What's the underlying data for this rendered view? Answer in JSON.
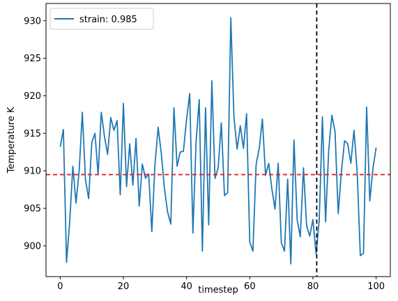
{
  "chart_data": {
    "type": "line",
    "title": "",
    "xlabel": "timestep",
    "ylabel": "Temperature K",
    "xlim": [
      -4.5,
      104.5
    ],
    "ylim": [
      895.9,
      932.3
    ],
    "xticks": [
      "0",
      "20",
      "40",
      "60",
      "80",
      "100"
    ],
    "yticks": [
      "900",
      "905",
      "910",
      "915",
      "920",
      "925",
      "930"
    ],
    "grid": false,
    "legend_position": "top-left",
    "series": [
      {
        "name": "strain: 0.985",
        "color": "#1f77b4",
        "x": [
          0,
          1,
          2,
          3,
          4,
          5,
          6,
          7,
          8,
          9,
          10,
          11,
          12,
          13,
          14,
          15,
          16,
          17,
          18,
          19,
          20,
          21,
          22,
          23,
          24,
          25,
          26,
          27,
          28,
          29,
          30,
          31,
          32,
          33,
          34,
          35,
          36,
          37,
          38,
          39,
          40,
          41,
          42,
          43,
          44,
          45,
          46,
          47,
          48,
          49,
          50,
          51,
          52,
          53,
          54,
          55,
          56,
          57,
          58,
          59,
          60,
          61,
          62,
          63,
          64,
          65,
          66,
          67,
          68,
          69,
          70,
          71,
          72,
          73,
          74,
          75,
          76,
          77,
          78,
          79,
          80,
          81,
          82,
          83,
          84,
          85,
          86,
          87,
          88,
          89,
          90,
          91,
          92,
          93,
          94,
          95,
          96,
          97,
          98,
          99,
          100
        ],
        "values": [
          913.2,
          915.5,
          897.8,
          903.2,
          910.6,
          905.7,
          910.0,
          917.8,
          908.8,
          906.3,
          913.8,
          915.0,
          909.5,
          917.8,
          914.6,
          912.2,
          917.1,
          915.4,
          916.7,
          906.8,
          919.0,
          907.9,
          913.6,
          908.1,
          914.3,
          905.3,
          910.9,
          909.0,
          909.6,
          901.9,
          910.9,
          915.8,
          912.3,
          907.6,
          904.5,
          902.9,
          918.4,
          910.6,
          912.5,
          912.6,
          916.9,
          920.3,
          901.7,
          913.8,
          919.5,
          899.3,
          918.4,
          902.8,
          922.0,
          909.0,
          910.4,
          916.4,
          906.7,
          907.1,
          930.4,
          917.1,
          912.9,
          916.0,
          913.0,
          917.6,
          900.5,
          899.3,
          910.8,
          913.0,
          916.9,
          909.4,
          911.0,
          907.6,
          904.9,
          911.0,
          900.4,
          899.3,
          908.9,
          897.6,
          914.1,
          903.5,
          901.2,
          910.4,
          902.7,
          901.3,
          903.5,
          898.9,
          903.5,
          917.2,
          903.2,
          912.8,
          917.4,
          915.2,
          904.3,
          909.8,
          914.0,
          913.6,
          911.0,
          915.4,
          909.9,
          898.7,
          899.0,
          918.5,
          906.0,
          910.3,
          913.1
        ]
      }
    ],
    "reference_lines": [
      {
        "orientation": "horizontal",
        "value": 909.5,
        "color": "#d62728",
        "style": "dashed"
      },
      {
        "orientation": "vertical",
        "value": 81.2,
        "color": "#000000",
        "style": "dashed"
      }
    ]
  }
}
